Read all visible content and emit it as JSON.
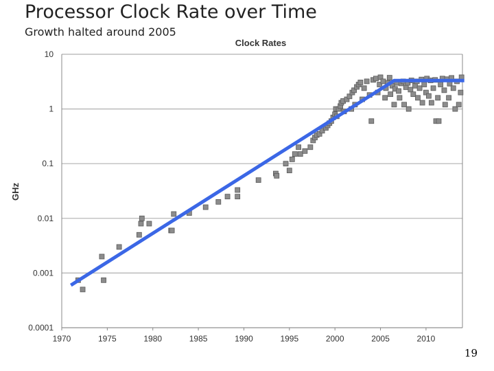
{
  "slide": {
    "title": "Processor Clock Rate over Time",
    "subtitle": "Growth halted around 2005",
    "page_number": "19"
  },
  "colors": {
    "marker_fill": "#8c8c8c",
    "marker_stroke": "#5a5a5a",
    "trend_line": "#3b67e6",
    "grid": "#b0b0b0",
    "axis": "#888888"
  },
  "chart_data": {
    "type": "scatter",
    "title": "Clock Rates",
    "xlabel": "",
    "ylabel": "GHz",
    "xlim": [
      1970,
      2014
    ],
    "ylim": [
      0.0001,
      10
    ],
    "y_scale": "log",
    "grid": "horizontal",
    "x_ticks": [
      "1970",
      "1975",
      "1980",
      "1985",
      "1990",
      "1995",
      "2000",
      "2005",
      "2010"
    ],
    "y_ticks": [
      "10",
      "1",
      "0.1",
      "0.01",
      "0.001",
      "0.0001"
    ],
    "series": [
      {
        "marker": "square",
        "points": [
          [
            1971.8,
            0.00074
          ],
          [
            1972.3,
            0.0005
          ],
          [
            1974.4,
            0.002
          ],
          [
            1974.6,
            0.00074
          ],
          [
            1976.3,
            0.003
          ],
          [
            1978.5,
            0.005
          ],
          [
            1978.7,
            0.008
          ],
          [
            1978.8,
            0.01
          ],
          [
            1979.6,
            0.008
          ],
          [
            1982.0,
            0.006
          ],
          [
            1982.1,
            0.006
          ],
          [
            1982.3,
            0.012
          ],
          [
            1984.0,
            0.0125
          ],
          [
            1985.8,
            0.016
          ],
          [
            1987.2,
            0.02
          ],
          [
            1988.2,
            0.025
          ],
          [
            1989.3,
            0.033
          ],
          [
            1989.3,
            0.025
          ],
          [
            1991.6,
            0.05
          ],
          [
            1993.5,
            0.066
          ],
          [
            1993.6,
            0.06
          ],
          [
            1994.6,
            0.1
          ],
          [
            1995.0,
            0.075
          ],
          [
            1995.3,
            0.12
          ],
          [
            1995.6,
            0.15
          ],
          [
            1996.0,
            0.2
          ],
          [
            1996.2,
            0.15
          ],
          [
            1996.7,
            0.17
          ],
          [
            1997.3,
            0.2
          ],
          [
            1997.6,
            0.266
          ],
          [
            1997.8,
            0.3
          ],
          [
            1998.0,
            0.333
          ],
          [
            1998.3,
            0.35
          ],
          [
            1998.6,
            0.4
          ],
          [
            1999.0,
            0.45
          ],
          [
            1999.2,
            0.5
          ],
          [
            1999.4,
            0.55
          ],
          [
            1999.6,
            0.6
          ],
          [
            1999.8,
            0.7
          ],
          [
            2000.0,
            0.8
          ],
          [
            2000.1,
            1.0
          ],
          [
            2000.2,
            0.733
          ],
          [
            2000.4,
            1.0
          ],
          [
            2000.6,
            1.13
          ],
          [
            2000.7,
            1.3
          ],
          [
            2000.9,
            1.4
          ],
          [
            2001.0,
            0.9
          ],
          [
            2001.3,
            1.5
          ],
          [
            2001.6,
            1.7
          ],
          [
            2001.8,
            1.0
          ],
          [
            2001.9,
            2.0
          ],
          [
            2002.1,
            2.2
          ],
          [
            2002.2,
            1.2
          ],
          [
            2002.4,
            2.53
          ],
          [
            2002.6,
            2.8
          ],
          [
            2002.8,
            3.06
          ],
          [
            2003.0,
            1.5
          ],
          [
            2003.2,
            2.4
          ],
          [
            2003.5,
            3.2
          ],
          [
            2003.8,
            1.8
          ],
          [
            2004.0,
            0.6
          ],
          [
            2004.2,
            3.4
          ],
          [
            2004.5,
            3.6
          ],
          [
            2004.7,
            2.0
          ],
          [
            2004.9,
            2.8
          ],
          [
            2005.0,
            3.8
          ],
          [
            2005.3,
            3.2
          ],
          [
            2005.5,
            1.6
          ],
          [
            2005.6,
            2.4
          ],
          [
            2005.8,
            3.0
          ],
          [
            2006.0,
            3.73
          ],
          [
            2006.1,
            1.86
          ],
          [
            2006.3,
            2.66
          ],
          [
            2006.5,
            1.2
          ],
          [
            2006.6,
            2.33
          ],
          [
            2006.8,
            3.0
          ],
          [
            2007.0,
            2.13
          ],
          [
            2007.1,
            1.6
          ],
          [
            2007.3,
            2.93
          ],
          [
            2007.5,
            3.2
          ],
          [
            2007.6,
            1.2
          ],
          [
            2007.8,
            2.5
          ],
          [
            2008.0,
            3.0
          ],
          [
            2008.1,
            1.0
          ],
          [
            2008.3,
            2.26
          ],
          [
            2008.4,
            3.33
          ],
          [
            2008.6,
            1.86
          ],
          [
            2008.8,
            2.66
          ],
          [
            2009.0,
            3.2
          ],
          [
            2009.1,
            1.6
          ],
          [
            2009.3,
            2.4
          ],
          [
            2009.5,
            3.46
          ],
          [
            2009.6,
            1.3
          ],
          [
            2009.8,
            2.8
          ],
          [
            2010.0,
            2.0
          ],
          [
            2010.1,
            3.6
          ],
          [
            2010.3,
            1.73
          ],
          [
            2010.5,
            3.33
          ],
          [
            2010.6,
            1.3
          ],
          [
            2010.8,
            2.4
          ],
          [
            2011.0,
            3.4
          ],
          [
            2011.1,
            0.6
          ],
          [
            2011.3,
            1.6
          ],
          [
            2011.4,
            0.6
          ],
          [
            2011.6,
            2.8
          ],
          [
            2011.8,
            3.6
          ],
          [
            2012.0,
            2.2
          ],
          [
            2012.1,
            1.2
          ],
          [
            2012.3,
            3.5
          ],
          [
            2012.5,
            1.6
          ],
          [
            2012.6,
            2.9
          ],
          [
            2012.8,
            3.7
          ],
          [
            2013.0,
            2.4
          ],
          [
            2013.2,
            1.0
          ],
          [
            2013.4,
            3.2
          ],
          [
            2013.6,
            1.2
          ],
          [
            2013.8,
            2.0
          ],
          [
            2013.9,
            3.8
          ]
        ]
      }
    ],
    "trend_line": {
      "points": [
        [
          1971.0,
          0.0006
        ],
        [
          2006.5,
          3.3
        ],
        [
          2014.2,
          3.3
        ]
      ]
    }
  }
}
